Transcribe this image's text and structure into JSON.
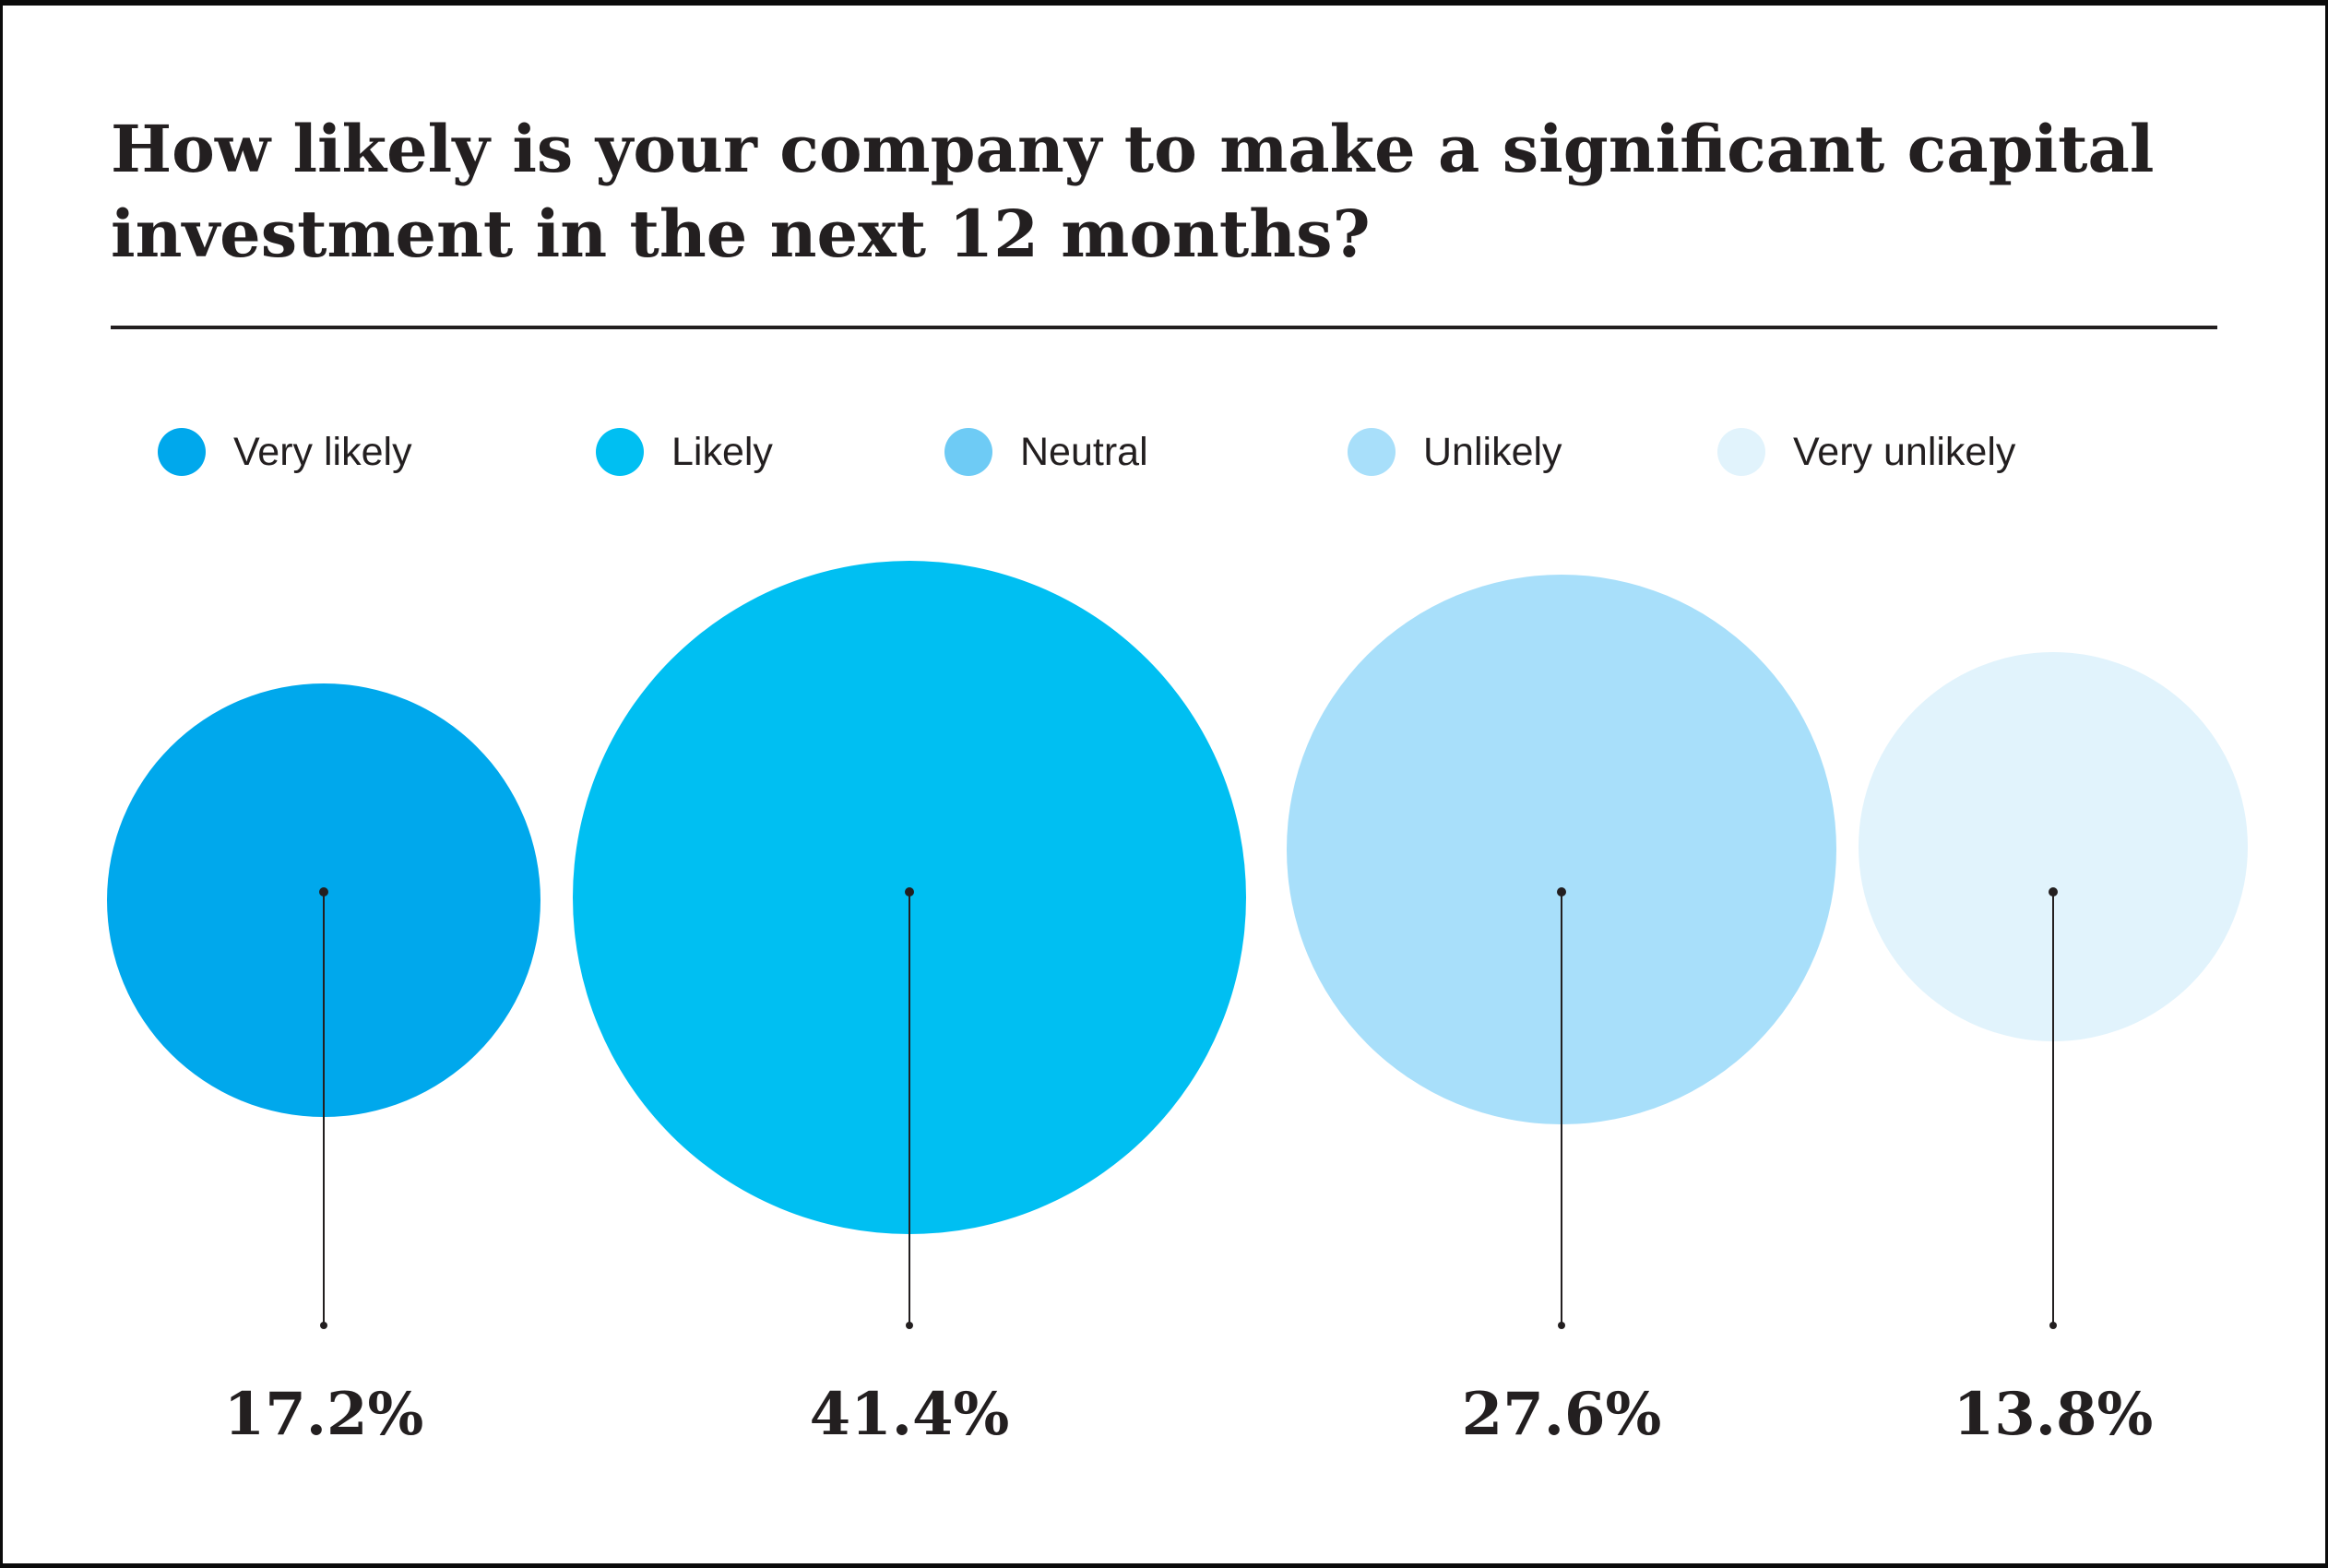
{
  "title": {
    "line1": "How likely is your company to make a significant capital",
    "line2": "investment in the next 12 months?"
  },
  "colors": {
    "text": "#231f20",
    "frame": "#0b0b0b",
    "very_likely": "#00a8ec",
    "likely": "#00bff2",
    "neutral": "#6ecbf5",
    "unlikely": "#a8dffa",
    "very_unlikely": "#e1f3fc"
  },
  "legend": {
    "items": [
      {
        "label": "Very likely",
        "color": "#00a8ec"
      },
      {
        "label": "Likely",
        "color": "#00bff2"
      },
      {
        "label": "Neutral",
        "color": "#6ecbf5"
      },
      {
        "label": "Unlikely",
        "color": "#a8dffa"
      },
      {
        "label": "Very unlikely",
        "color": "#e1f3fc"
      }
    ]
  },
  "chart_data": {
    "type": "bubble",
    "title": "How likely is your company to make a significant capital investment in the next 12 months?",
    "legend_position": "top",
    "sizing": "bubble area proportional to percentage",
    "categories": [
      "Very likely",
      "Likely",
      "Neutral",
      "Unlikely",
      "Very unlikely"
    ],
    "bubbles": [
      {
        "category": "Very likely",
        "value": 17.2,
        "display": "17.2%",
        "color": "#00a8ec"
      },
      {
        "category": "Likely",
        "value": 41.4,
        "display": "41.4%",
        "color": "#00bff2"
      },
      {
        "category": "Unlikely",
        "value": 27.6,
        "display": "27.6%",
        "color": "#a8dffa"
      },
      {
        "category": "Very unlikely",
        "value": 13.8,
        "display": "13.8%",
        "color": "#e1f3fc"
      }
    ]
  }
}
